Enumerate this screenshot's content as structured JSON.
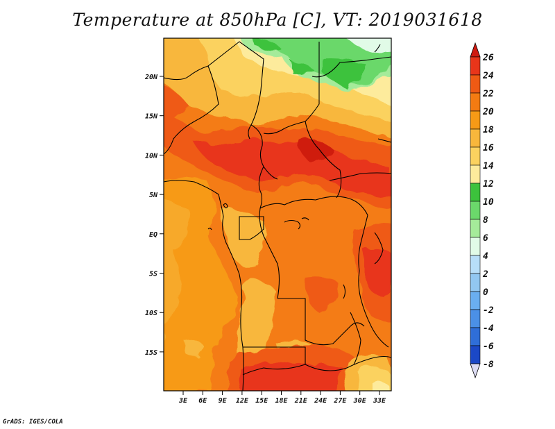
{
  "title": "Temperature at 850hPa [C], VT: 2019031618",
  "credit": "GrADS: IGES/COLA",
  "map": {
    "lat_ticks": [
      "20N",
      "15N",
      "10N",
      "5N",
      "EQ",
      "5S",
      "10S",
      "15S"
    ],
    "lon_ticks": [
      "3E",
      "6E",
      "9E",
      "12E",
      "15E",
      "18E",
      "21E",
      "24E",
      "27E",
      "30E",
      "33E"
    ]
  },
  "colorbar": {
    "labels": [
      "26",
      "24",
      "22",
      "20",
      "18",
      "16",
      "14",
      "12",
      "10",
      "8",
      "6",
      "4",
      "2",
      "0",
      "-2",
      "-4",
      "-6",
      "-8"
    ],
    "colors": [
      "#e8351a",
      "#ef5a14",
      "#f47b12",
      "#f79a16",
      "#f8b73c",
      "#fbd25f",
      "#fdeb9c",
      "#3cc23c",
      "#6bd86b",
      "#a5eb9a",
      "#e1fbe7",
      "#b7def8",
      "#92c7f1",
      "#6aaef0",
      "#4b90e6",
      "#2f6ed8",
      "#1b48c6",
      "#0f27a8",
      "#09127a",
      "#070b55"
    ],
    "over_color": "#cf1a10",
    "under_color": "#dcdcf3"
  }
}
